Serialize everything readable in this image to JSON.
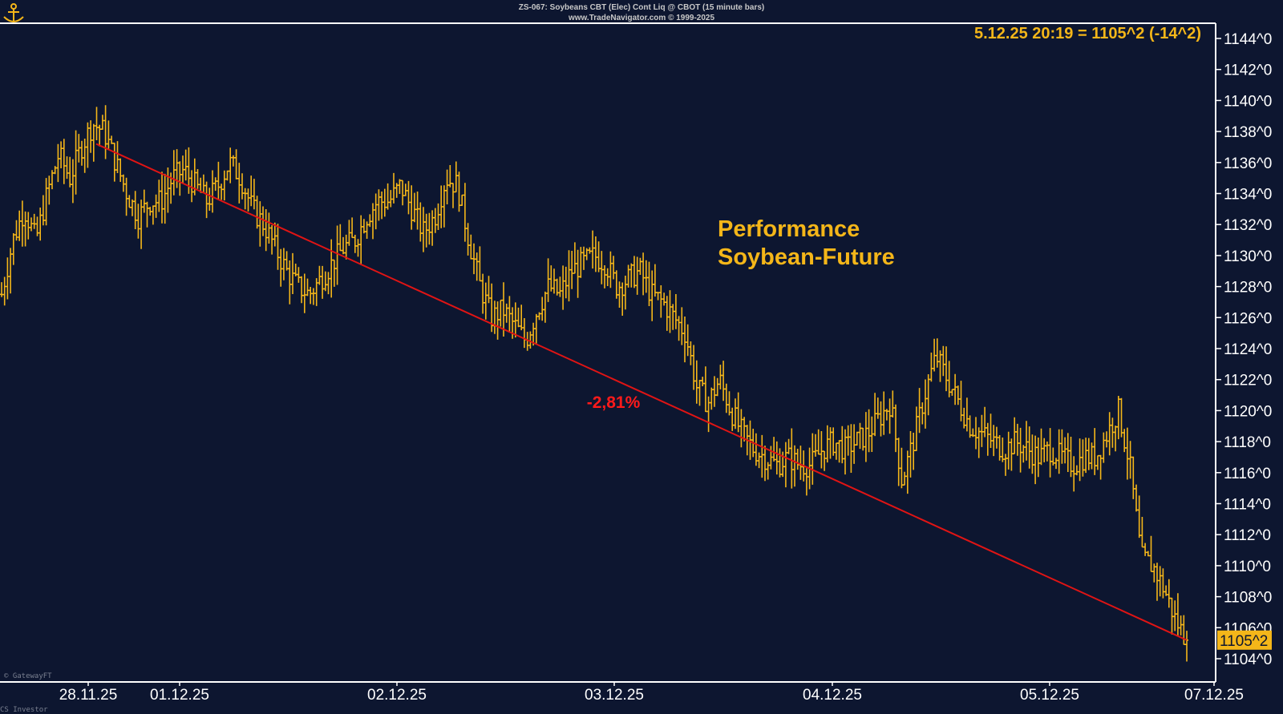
{
  "header": {
    "line1": "ZS-067:  Soybeans CBT (Elec) Cont Liq @ CBOT  (15 minute bars)",
    "line2": "www.TradeNavigator.com © 1999-2025"
  },
  "readout": "5.12.25 20:19 = 1105^2 (-14^2)",
  "annotation": {
    "line1": "Performance",
    "line2": "Soybean-Future",
    "change": "-2,81%"
  },
  "last_price_label": "1105^2",
  "footer": {
    "left": "CS Investor",
    "watermark": "© GatewayFT"
  },
  "colors": {
    "background": "#0d1630",
    "bars": "#f4b619",
    "trendline": "#e01414",
    "frame": "#ffffff"
  },
  "chart_data": {
    "type": "line",
    "style": "ohlc-bars",
    "title": "ZS-067:  Soybeans CBT (Elec) Cont Liq @ CBOT  (15 minute bars)",
    "xlabel": "",
    "ylabel": "",
    "ylim": [
      1104,
      1144
    ],
    "yticks": [
      "1104^0",
      "1106^0",
      "1108^0",
      "1110^0",
      "1112^0",
      "1114^0",
      "1116^0",
      "1118^0",
      "1120^0",
      "1122^0",
      "1124^0",
      "1126^0",
      "1128^0",
      "1130^0",
      "1132^0",
      "1134^0",
      "1136^0",
      "1138^0",
      "1140^0",
      "1142^0",
      "1144^0"
    ],
    "ytick_values": [
      1104,
      1106,
      1108,
      1110,
      1112,
      1114,
      1116,
      1118,
      1120,
      1122,
      1124,
      1126,
      1128,
      1130,
      1132,
      1134,
      1136,
      1138,
      1140,
      1142,
      1144
    ],
    "xticks": [
      "28.11.25",
      "01.12.25",
      "02.12.25",
      "03.12.25",
      "04.12.25",
      "05.12.25",
      "07.12.25"
    ],
    "grid": false,
    "price_path": [
      {
        "date": "28.11.25",
        "v": 1127.5
      },
      {
        "date": "28.11.25",
        "v": 1131
      },
      {
        "date": "28.11.25",
        "v": 1133
      },
      {
        "date": "28.11.25",
        "v": 1131
      },
      {
        "date": "28.11.25",
        "v": 1134
      },
      {
        "date": "28.11.25",
        "v": 1136.5
      },
      {
        "date": "28.11.25",
        "v": 1135
      },
      {
        "date": "28.11.25",
        "v": 1137
      },
      {
        "date": "28.11.25",
        "v": 1138.5
      },
      {
        "date": "28.11.25",
        "v": 1138
      },
      {
        "date": "28.11.25",
        "v": 1136
      },
      {
        "date": "01.12.25",
        "v": 1134
      },
      {
        "date": "01.12.25",
        "v": 1132.5
      },
      {
        "date": "01.12.25",
        "v": 1133.5
      },
      {
        "date": "01.12.25",
        "v": 1133.5
      },
      {
        "date": "01.12.25",
        "v": 1135
      },
      {
        "date": "01.12.25",
        "v": 1135.5
      },
      {
        "date": "01.12.25",
        "v": 1134.5
      },
      {
        "date": "01.12.25",
        "v": 1133.5
      },
      {
        "date": "01.12.25",
        "v": 1134.5
      },
      {
        "date": "01.12.25",
        "v": 1136
      },
      {
        "date": "01.12.25",
        "v": 1135
      },
      {
        "date": "01.12.25",
        "v": 1133
      },
      {
        "date": "01.12.25",
        "v": 1132
      },
      {
        "date": "01.12.25",
        "v": 1130.5
      },
      {
        "date": "01.12.25",
        "v": 1129
      },
      {
        "date": "01.12.25",
        "v": 1128
      },
      {
        "date": "01.12.25",
        "v": 1127.5
      },
      {
        "date": "01.12.25",
        "v": 1128.5
      },
      {
        "date": "02.12.25",
        "v": 1129.5
      },
      {
        "date": "02.12.25",
        "v": 1130.5
      },
      {
        "date": "02.12.25",
        "v": 1131
      },
      {
        "date": "02.12.25",
        "v": 1132.5
      },
      {
        "date": "02.12.25",
        "v": 1133.5
      },
      {
        "date": "02.12.25",
        "v": 1133.5
      },
      {
        "date": "02.12.25",
        "v": 1134.5
      },
      {
        "date": "02.12.25",
        "v": 1133
      },
      {
        "date": "02.12.25",
        "v": 1131.5
      },
      {
        "date": "02.12.25",
        "v": 1132.5
      },
      {
        "date": "02.12.25",
        "v": 1135
      },
      {
        "date": "02.12.25",
        "v": 1134.5
      },
      {
        "date": "02.12.25",
        "v": 1131
      },
      {
        "date": "02.12.25",
        "v": 1128
      },
      {
        "date": "02.12.25",
        "v": 1126
      },
      {
        "date": "02.12.25",
        "v": 1126.5
      },
      {
        "date": "02.12.25",
        "v": 1125.5
      },
      {
        "date": "02.12.25",
        "v": 1124.5
      },
      {
        "date": "02.12.25",
        "v": 1126.5
      },
      {
        "date": "02.12.25",
        "v": 1128
      },
      {
        "date": "02.12.25",
        "v": 1127.5
      },
      {
        "date": "02.12.25",
        "v": 1129
      },
      {
        "date": "03.12.25",
        "v": 1129.5
      },
      {
        "date": "03.12.25",
        "v": 1130
      },
      {
        "date": "03.12.25",
        "v": 1129.5
      },
      {
        "date": "03.12.25",
        "v": 1128
      },
      {
        "date": "03.12.25",
        "v": 1128.5
      },
      {
        "date": "03.12.25",
        "v": 1129
      },
      {
        "date": "03.12.25",
        "v": 1127.5
      },
      {
        "date": "03.12.25",
        "v": 1127
      },
      {
        "date": "03.12.25",
        "v": 1126
      },
      {
        "date": "03.12.25",
        "v": 1125
      },
      {
        "date": "03.12.25",
        "v": 1121.5
      },
      {
        "date": "03.12.25",
        "v": 1120.5
      },
      {
        "date": "03.12.25",
        "v": 1122
      },
      {
        "date": "03.12.25",
        "v": 1120
      },
      {
        "date": "03.12.25",
        "v": 1118.5
      },
      {
        "date": "03.12.25",
        "v": 1117.5
      },
      {
        "date": "03.12.25",
        "v": 1117
      },
      {
        "date": "03.12.25",
        "v": 1116.5
      },
      {
        "date": "03.12.25",
        "v": 1117
      },
      {
        "date": "03.12.25",
        "v": 1116.5
      },
      {
        "date": "04.12.25",
        "v": 1116.5
      },
      {
        "date": "04.12.25",
        "v": 1117.5
      },
      {
        "date": "04.12.25",
        "v": 1118
      },
      {
        "date": "04.12.25",
        "v": 1117.5
      },
      {
        "date": "04.12.25",
        "v": 1118
      },
      {
        "date": "04.12.25",
        "v": 1118.5
      },
      {
        "date": "04.12.25",
        "v": 1119.5
      },
      {
        "date": "04.12.25",
        "v": 1120.5
      },
      {
        "date": "04.12.25",
        "v": 1115.5
      },
      {
        "date": "04.12.25",
        "v": 1118
      },
      {
        "date": "04.12.25",
        "v": 1121
      },
      {
        "date": "04.12.25",
        "v": 1123.5
      },
      {
        "date": "04.12.25",
        "v": 1122
      },
      {
        "date": "04.12.25",
        "v": 1120.5
      },
      {
        "date": "04.12.25",
        "v": 1119
      },
      {
        "date": "04.12.25",
        "v": 1118.5
      },
      {
        "date": "04.12.25",
        "v": 1118
      },
      {
        "date": "05.12.25",
        "v": 1117.5
      },
      {
        "date": "05.12.25",
        "v": 1118
      },
      {
        "date": "05.12.25",
        "v": 1117.5
      },
      {
        "date": "05.12.25",
        "v": 1117
      },
      {
        "date": "05.12.25",
        "v": 1117.5
      },
      {
        "date": "05.12.25",
        "v": 1117
      },
      {
        "date": "05.12.25",
        "v": 1116.5
      },
      {
        "date": "05.12.25",
        "v": 1117
      },
      {
        "date": "05.12.25",
        "v": 1117
      },
      {
        "date": "05.12.25",
        "v": 1118.5
      },
      {
        "date": "05.12.25",
        "v": 1120
      },
      {
        "date": "05.12.25",
        "v": 1116.5
      },
      {
        "date": "05.12.25",
        "v": 1110.5
      },
      {
        "date": "05.12.25",
        "v": 1110
      },
      {
        "date": "05.12.25",
        "v": 1108.5
      },
      {
        "date": "05.12.25",
        "v": 1106.5
      },
      {
        "date": "05.12.25",
        "v": 1105.2
      }
    ],
    "trendline": {
      "from": {
        "date": "28.11.25",
        "v": 1137.2
      },
      "to": {
        "date": "05.12.25",
        "v": 1105.2
      },
      "label": "-2,81%"
    },
    "last": {
      "label": "5.12.25 20:19",
      "value": "1105^2",
      "change": "-14^2"
    }
  }
}
